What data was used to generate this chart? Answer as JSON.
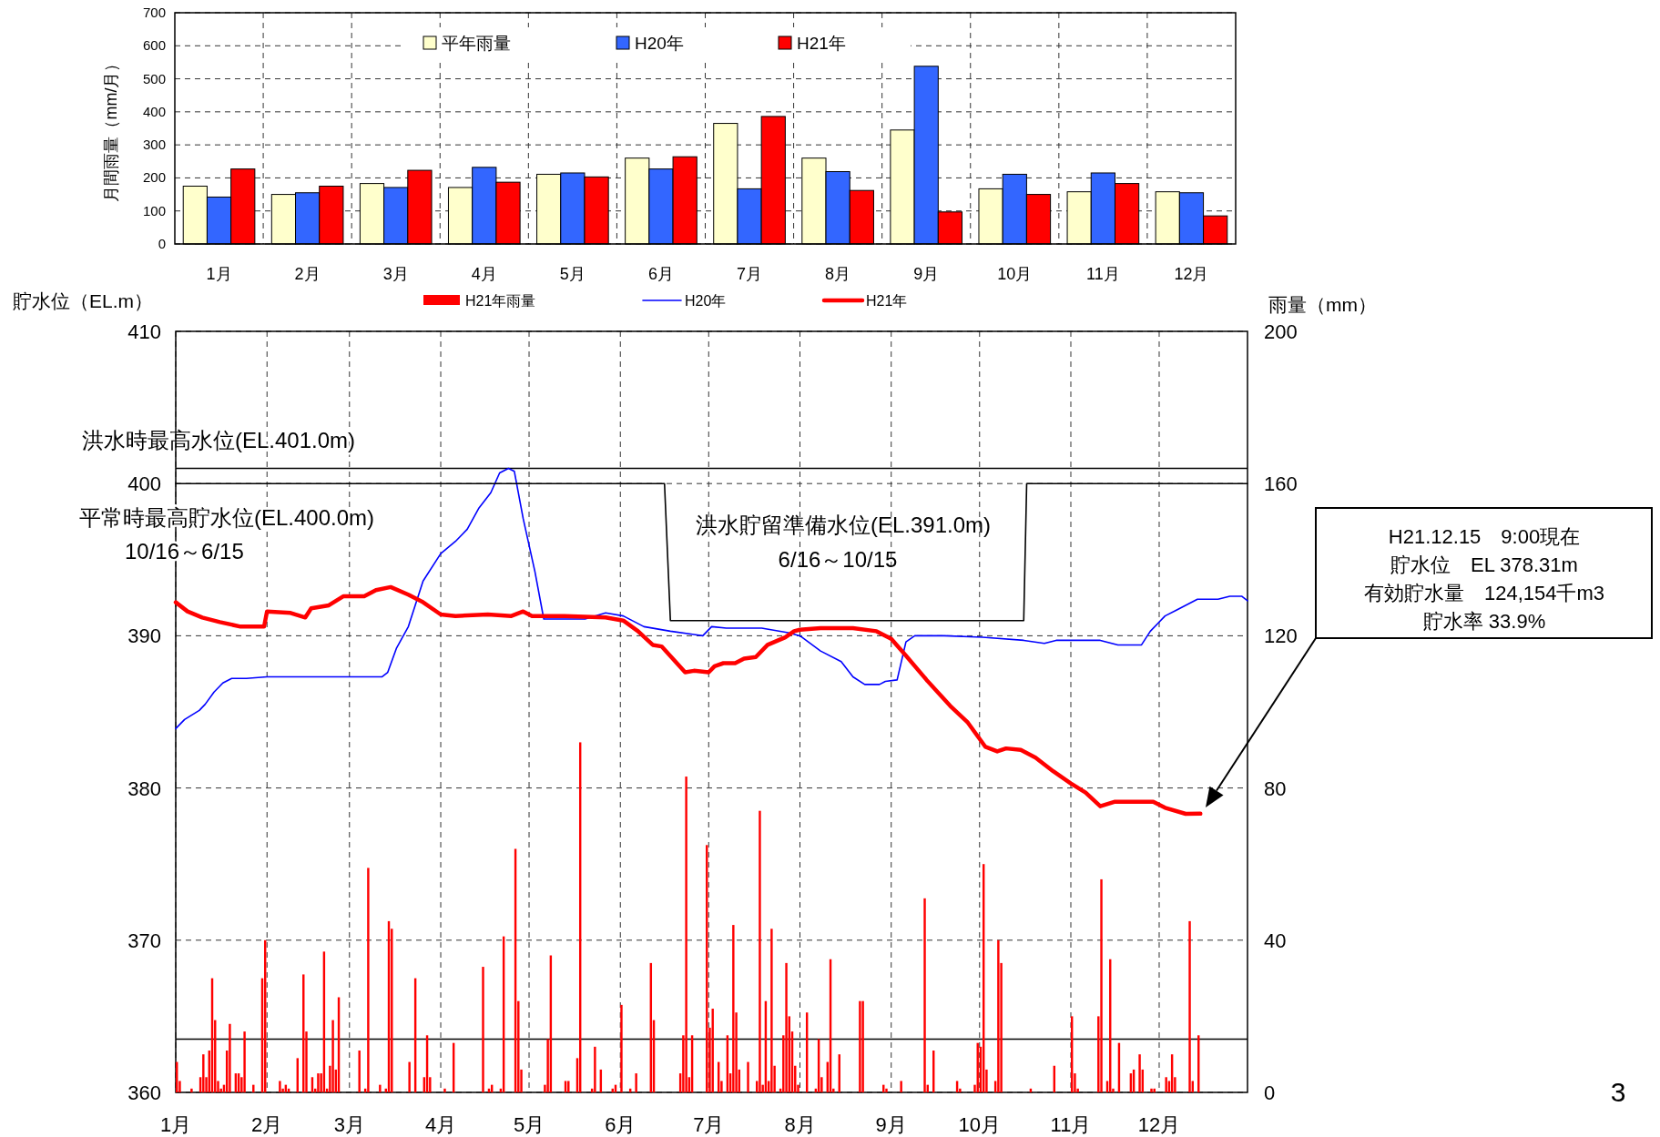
{
  "chart_data": [
    {
      "type": "bar",
      "ylabel": "月間雨量（mm/月）",
      "categories": [
        "1月",
        "2月",
        "3月",
        "4月",
        "5月",
        "6月",
        "7月",
        "8月",
        "9月",
        "10月",
        "11月",
        "12月"
      ],
      "series": [
        {
          "name": "平年雨量",
          "color": "#ffffcc",
          "values": [
            175,
            150,
            183,
            171,
            211,
            260,
            365,
            260,
            345,
            167,
            158,
            158
          ]
        },
        {
          "name": "H20年",
          "color": "#3366ff",
          "values": [
            142,
            155,
            171,
            232,
            215,
            227,
            167,
            219,
            538,
            211,
            215,
            155
          ]
        },
        {
          "name": "H21年",
          "color": "#ff0000",
          "values": [
            227,
            175,
            223,
            187,
            203,
            264,
            386,
            162,
            97,
            150,
            183,
            85
          ]
        }
      ],
      "ylim": [
        0,
        700
      ],
      "yticks": [
        0,
        100,
        200,
        300,
        400,
        500,
        600,
        700
      ],
      "grid": true,
      "legend": "top"
    },
    {
      "type": "line",
      "ylabel": "貯水位（EL.m）",
      "y2label": "雨量（mm）",
      "xlim": [
        "--01-01",
        "--12-31"
      ],
      "xticks": [
        {
          "value": "--01-01",
          "label": "1月"
        },
        {
          "value": "--02-01",
          "label": "2月"
        },
        {
          "value": "--03-01",
          "label": "3月"
        },
        {
          "value": "--04-01",
          "label": "4月"
        },
        {
          "value": "--05-01",
          "label": "5月"
        },
        {
          "value": "--06-01",
          "label": "6月"
        },
        {
          "value": "--07-01",
          "label": "7月"
        },
        {
          "value": "--08-01",
          "label": "8月"
        },
        {
          "value": "--09-01",
          "label": "9月"
        },
        {
          "value": "--10-01",
          "label": "10月"
        },
        {
          "value": "--11-01",
          "label": "11月"
        },
        {
          "value": "--12-01",
          "label": "12月"
        }
      ],
      "ylim": [
        360,
        410
      ],
      "yticks": [
        360,
        370,
        380,
        390,
        400,
        410
      ],
      "y2lim": [
        0,
        200
      ],
      "y2ticks": [
        0,
        40,
        80,
        120,
        160,
        200
      ],
      "series": [
        {
          "name": "H21年雨量",
          "type": "bar",
          "axis": "y2",
          "color": "#ff0000",
          "x": [
            "--01-01",
            "--01-02",
            "--01-06",
            "--01-09",
            "--01-10",
            "--01-11",
            "--01-12",
            "--01-13",
            "--01-14",
            "--01-15",
            "--01-16",
            "--01-17",
            "--01-18",
            "--01-19",
            "--01-21",
            "--01-22",
            "--01-23",
            "--01-24",
            "--01-27",
            "--01-30",
            "--01-31",
            "--02-05",
            "--02-06",
            "--02-07",
            "--02-08",
            "--02-11",
            "--02-13",
            "--02-14",
            "--02-16",
            "--02-17",
            "--02-18",
            "--02-19",
            "--02-20",
            "--02-21",
            "--02-22",
            "--02-23",
            "--02-24",
            "--02-25",
            "--03-04",
            "--03-06",
            "--03-07",
            "--03-11",
            "--03-13",
            "--03-14",
            "--03-15",
            "--03-21",
            "--03-23",
            "--03-26",
            "--03-27",
            "--03-28",
            "--04-02",
            "--04-05",
            "--04-15",
            "--04-17",
            "--04-18",
            "--04-21",
            "--04-22",
            "--04-26",
            "--04-27",
            "--04-28",
            "--05-06",
            "--05-07",
            "--05-08",
            "--05-13",
            "--05-14",
            "--05-17",
            "--05-18",
            "--05-22",
            "--05-23",
            "--05-25",
            "--05-29",
            "--05-30",
            "--06-01",
            "--06-04",
            "--06-06",
            "--06-11",
            "--06-12",
            "--06-21",
            "--06-22",
            "--06-23",
            "--06-24",
            "--06-25",
            "--06-30",
            "--07-01",
            "--07-02",
            "--07-04",
            "--07-05",
            "--07-07",
            "--07-08",
            "--07-09",
            "--07-10",
            "--07-11",
            "--07-14",
            "--07-17",
            "--07-18",
            "--07-19",
            "--07-20",
            "--07-21",
            "--07-22",
            "--07-23",
            "--07-25",
            "--07-26",
            "--07-27",
            "--07-28",
            "--07-29",
            "--07-30",
            "--07-31",
            "--08-03",
            "--08-06",
            "--08-07",
            "--08-08",
            "--08-10",
            "--08-11",
            "--08-12",
            "--08-14",
            "--08-21",
            "--08-22",
            "--08-29",
            "--08-30",
            "--09-04",
            "--09-12",
            "--09-13",
            "--09-15",
            "--09-23",
            "--09-24",
            "--09-29",
            "--09-30",
            "--10-01",
            "--10-02",
            "--10-03",
            "--10-06",
            "--10-07",
            "--10-08",
            "--10-18",
            "--10-26",
            "--11-01",
            "--11-02",
            "--11-03",
            "--11-10",
            "--11-11",
            "--11-13",
            "--11-14",
            "--11-15",
            "--11-17",
            "--11-21",
            "--11-22",
            "--11-24",
            "--11-25",
            "--11-28",
            "--11-29",
            "--12-03",
            "--12-04",
            "--12-05",
            "--12-06",
            "--12-11",
            "--12-12",
            "--12-14"
          ],
          "values": [
            8,
            3,
            1,
            4,
            10,
            4,
            11,
            30,
            19,
            3,
            1,
            2,
            11,
            18,
            5,
            5,
            4,
            16,
            2,
            30,
            40,
            3,
            1,
            2,
            1,
            9,
            31,
            16,
            4,
            1,
            5,
            5,
            37,
            1,
            7,
            19,
            6,
            25,
            11,
            1,
            59,
            2,
            1,
            45,
            43,
            8,
            30,
            4,
            15,
            4,
            1,
            13,
            33,
            1,
            2,
            1,
            41,
            64,
            24,
            6,
            2,
            14,
            36,
            3,
            3,
            9,
            92,
            1,
            12,
            6,
            1,
            2,
            23,
            1,
            5,
            34,
            19,
            5,
            15,
            83,
            4,
            15,
            65,
            17,
            22,
            8,
            3,
            15,
            5,
            44,
            21,
            6,
            8,
            3,
            74,
            2,
            24,
            3,
            43,
            7,
            1,
            15,
            34,
            20,
            16,
            7,
            2,
            21,
            1,
            14,
            4,
            8,
            35,
            1,
            10,
            24,
            24,
            2,
            1,
            3,
            51,
            2,
            11,
            3,
            1,
            2,
            13,
            12,
            60,
            6,
            3,
            40,
            34,
            1,
            7,
            20,
            5,
            1,
            20,
            56,
            3,
            35,
            1,
            13,
            5,
            6,
            10,
            6,
            1,
            1,
            4,
            3,
            10,
            4,
            45,
            3,
            15
          ]
        },
        {
          "name": "H20年",
          "type": "line",
          "color": "#0000ff",
          "x": [
            "--01-01",
            "--01-04",
            "--01-09",
            "--01-11",
            "--01-14",
            "--01-17",
            "--01-20",
            "--01-25",
            "--02-01",
            "--03-12",
            "--03-14",
            "--03-17",
            "--03-21",
            "--03-26",
            "--04-01",
            "--04-06",
            "--04-10",
            "--04-14",
            "--04-18",
            "--04-21",
            "--04-24",
            "--04-26",
            "--04-29",
            "--05-03",
            "--05-06",
            "--05-20",
            "--05-27",
            "--06-02",
            "--06-09",
            "--06-18",
            "--06-29",
            "--07-02",
            "--07-07",
            "--07-19",
            "--07-28",
            "--08-01",
            "--08-08",
            "--08-15",
            "--08-19",
            "--08-23",
            "--08-28",
            "--08-30",
            "--09-03",
            "--09-06",
            "--09-09",
            "--09-19",
            "--10-02",
            "--10-16",
            "--10-23",
            "--10-27",
            "--11-11",
            "--11-17",
            "--11-25",
            "--11-28",
            "--12-03",
            "--12-07",
            "--12-14",
            "--12-21",
            "--12-25",
            "--12-29",
            "--12-31"
          ],
          "values": [
            383.9,
            384.5,
            385.1,
            385.5,
            386.3,
            386.9,
            387.2,
            387.2,
            387.3,
            387.3,
            387.6,
            389.2,
            390.6,
            393.6,
            395.4,
            396.2,
            397.0,
            398.4,
            399.4,
            400.7,
            401.0,
            400.8,
            397.7,
            394.2,
            391.1,
            391.1,
            391.5,
            391.3,
            390.6,
            390.3,
            390.0,
            390.6,
            390.5,
            390.5,
            390.2,
            390.0,
            389.0,
            388.3,
            387.3,
            386.8,
            386.8,
            387.0,
            387.1,
            389.6,
            390.0,
            390.0,
            389.9,
            389.7,
            389.5,
            389.7,
            389.7,
            389.4,
            389.4,
            390.3,
            391.3,
            391.7,
            392.4,
            392.4,
            392.6,
            392.6,
            392.3
          ]
        },
        {
          "name": "H21年",
          "type": "line",
          "color": "#ff0000",
          "x": [
            "--01-01",
            "--01-05",
            "--01-10",
            "--01-16",
            "--01-23",
            "--01-31",
            "--02-01",
            "--02-09",
            "--02-14",
            "--02-16",
            "--02-22",
            "--02-27",
            "--03-06",
            "--03-10",
            "--03-15",
            "--03-21",
            "--03-26",
            "--04-01",
            "--04-06",
            "--04-17",
            "--04-25",
            "--04-29",
            "--05-02",
            "--05-13",
            "--05-27",
            "--06-02",
            "--06-07",
            "--06-12",
            "--06-15",
            "--06-23",
            "--06-26",
            "--07-01",
            "--07-03",
            "--07-06",
            "--07-10",
            "--07-13",
            "--07-17",
            "--07-21",
            "--07-27",
            "--07-30",
            "--08-01",
            "--08-08",
            "--08-19",
            "--08-27",
            "--09-01",
            "--09-06",
            "--09-13",
            "--09-21",
            "--09-27",
            "--10-03",
            "--10-07",
            "--10-10",
            "--10-15",
            "--10-20",
            "--10-26",
            "--11-01",
            "--11-06",
            "--11-11",
            "--11-16",
            "--11-29",
            "--12-03",
            "--12-10",
            "--12-15"
          ],
          "values": [
            392.2,
            391.6,
            391.2,
            390.9,
            390.6,
            390.6,
            391.6,
            391.5,
            391.2,
            391.8,
            392.0,
            392.6,
            392.6,
            393.0,
            393.2,
            392.7,
            392.2,
            391.4,
            391.3,
            391.4,
            391.3,
            391.6,
            391.3,
            391.3,
            391.2,
            391.0,
            390.3,
            389.4,
            389.3,
            387.6,
            387.7,
            387.6,
            388.0,
            388.2,
            388.2,
            388.5,
            388.6,
            389.4,
            389.9,
            390.3,
            390.4,
            390.5,
            390.5,
            390.3,
            389.8,
            388.7,
            387.1,
            385.4,
            384.3,
            382.7,
            382.4,
            382.6,
            382.5,
            382.0,
            381.1,
            380.3,
            379.7,
            378.8,
            379.1,
            379.1,
            378.7,
            378.3,
            378.31
          ]
        },
        {
          "type": "line",
          "color": "#000000",
          "x": [
            "--01-01",
            "--06-16",
            "--06-18",
            "--10-16",
            "--10-17",
            "--12-31"
          ],
          "values": [
            400,
            400,
            391,
            391,
            400,
            400
          ]
        }
      ],
      "ref_lines": [
        {
          "axis": "y",
          "value": 401,
          "label": "洪水時最高水位(EL.401.0m)",
          "color": "#000000"
        },
        {
          "axis": "y",
          "value": 363.5,
          "color": "#000000"
        }
      ],
      "annotations": [
        "平常時最高貯水位(EL.400.0m)",
        "10/16～6/15",
        "洪水貯留準備水位(EL.391.0m)",
        "6/16～10/15",
        "H21.12.15　9:00現在",
        "貯水位　EL 378.31m",
        "有効貯水量　124,154千m3",
        "貯水率 33.9%",
        "3"
      ],
      "grid": true,
      "legend": "top"
    }
  ]
}
